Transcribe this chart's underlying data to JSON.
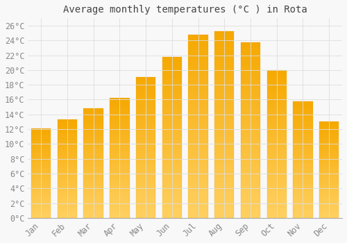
{
  "title": "Average monthly temperatures (°C ) in Rota",
  "months": [
    "Jan",
    "Feb",
    "Mar",
    "Apr",
    "May",
    "Jun",
    "Jul",
    "Aug",
    "Sep",
    "Oct",
    "Nov",
    "Dec"
  ],
  "values": [
    12.1,
    13.3,
    14.8,
    16.2,
    19.0,
    21.8,
    24.8,
    25.2,
    23.7,
    20.0,
    15.8,
    13.0
  ],
  "bar_color_top": "#F5A800",
  "bar_color_bottom": "#FFD060",
  "background_color": "#F8F8F8",
  "grid_color": "#DDDDDD",
  "tick_label_color": "#888888",
  "title_color": "#444444",
  "ylim": [
    0,
    27
  ],
  "yticks": [
    0,
    2,
    4,
    6,
    8,
    10,
    12,
    14,
    16,
    18,
    20,
    22,
    24,
    26
  ],
  "title_fontsize": 10,
  "tick_fontsize": 8.5
}
